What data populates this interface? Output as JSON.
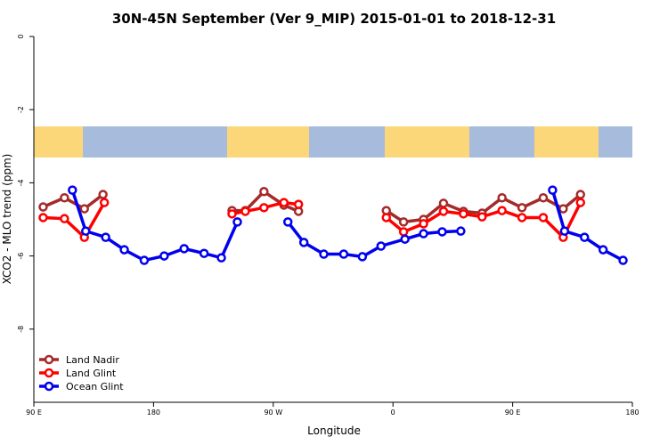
{
  "chart_data": {
    "type": "line",
    "title": "30N-45N September (Ver 9_MIP)   2015-01-01 to 2018-12-31",
    "xlabel": "Longitude",
    "ylabel": "XCO2 - MLO trend (ppm)",
    "xlim": [
      90,
      540
    ],
    "ylim": [
      -10,
      0
    ],
    "xticks": [
      {
        "value": 90,
        "label": "90 E"
      },
      180,
      {
        "value": 270,
        "label": "90 W"
      },
      {
        "value": 360,
        "label": "0"
      },
      {
        "value": 450,
        "label": "90 E"
      },
      {
        "value": 540,
        "label": "180"
      }
    ],
    "yticks": [
      0,
      -2,
      -4,
      -6,
      -8
    ],
    "legend": "bottom-left",
    "series": [
      {
        "name": "Land Nadir",
        "color": "#a52a2a",
        "x": [
          97,
          113,
          128,
          142,
          null,
          239,
          249,
          263,
          278,
          289,
          null,
          355,
          368,
          383,
          398,
          413,
          427,
          442,
          457,
          473,
          488,
          501
        ],
        "values": [
          -4.66,
          -4.41,
          -4.71,
          -4.32,
          null,
          -4.76,
          -4.76,
          -4.24,
          -4.61,
          -4.78,
          null,
          -4.76,
          -5.07,
          -5.0,
          -4.56,
          -4.78,
          -4.83,
          -4.41,
          -4.68,
          -4.41,
          -4.71,
          -4.32
        ]
      },
      {
        "name": "Land Glint",
        "color": "#ff0000",
        "x": [
          97,
          113,
          128,
          143,
          null,
          239,
          249,
          263,
          278,
          289,
          null,
          355,
          368,
          383,
          398,
          413,
          427,
          442,
          457,
          473,
          488,
          501
        ],
        "values": [
          -4.95,
          -4.98,
          -5.49,
          -4.54,
          null,
          -4.85,
          -4.78,
          -4.68,
          -4.54,
          -4.59,
          null,
          -4.95,
          -5.34,
          -5.12,
          -4.78,
          -4.85,
          -4.93,
          -4.76,
          -4.95,
          -4.95,
          -5.49,
          -4.54
        ]
      },
      {
        "name": "Ocean Glint",
        "color": "#0000ee",
        "x": [
          119,
          129,
          144,
          158,
          173,
          188,
          203,
          218,
          231,
          243,
          null,
          281,
          293,
          308,
          323,
          337,
          351,
          369,
          383,
          397,
          411,
          null,
          480,
          489,
          504,
          518,
          533
        ],
        "values": [
          -4.2,
          -5.32,
          -5.49,
          -5.83,
          -6.12,
          -6.0,
          -5.8,
          -5.93,
          -6.05,
          -5.07,
          null,
          -5.07,
          -5.63,
          -5.95,
          -5.95,
          -6.02,
          -5.73,
          -5.54,
          -5.39,
          -5.34,
          -5.32,
          null,
          -4.2,
          -5.32,
          -5.49,
          -5.83,
          -6.12
        ]
      }
    ]
  }
}
